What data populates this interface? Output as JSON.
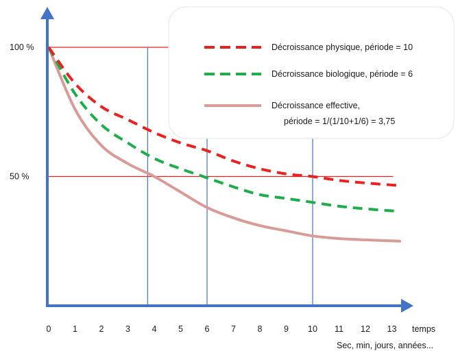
{
  "chart_data": {
    "type": "line",
    "title": "",
    "xlabel": "temps",
    "xlabel_units": "Sec, min, jours, années...",
    "ylabel": "",
    "x_ticks": [
      "0",
      "1",
      "2",
      "3",
      "4",
      "5",
      "6",
      "7",
      "8",
      "9",
      "10",
      "11",
      "12",
      "13"
    ],
    "y_ticks": [
      {
        "value": 100,
        "label": "100 %"
      },
      {
        "value": 50,
        "label": "50 %"
      }
    ],
    "xlim": [
      0,
      13.8
    ],
    "ylim": [
      0,
      110
    ],
    "x": [
      0,
      1,
      2,
      3,
      4,
      5,
      6,
      7,
      8,
      9,
      10,
      11,
      12,
      13.3
    ],
    "series": [
      {
        "name": "Décroissance physique, période = 10",
        "style": "dashed",
        "color": "#e8221f",
        "values": [
          100,
          86,
          77,
          72,
          67,
          63,
          60,
          56,
          53,
          51,
          50,
          48.5,
          47.5,
          46.5
        ]
      },
      {
        "name": "Décroissance biologique, période = 6",
        "style": "dashed",
        "color": "#1fac4b",
        "values": [
          100,
          82,
          70,
          63,
          57,
          53,
          49.5,
          46,
          43,
          41.5,
          40,
          38.5,
          37.5,
          36.5
        ]
      },
      {
        "name_line1": "Décroissance effective,",
        "name_line2": "période = 1/(1/10+1/6) = 3,75",
        "style": "solid",
        "color": "#d99b97",
        "values": [
          100,
          76,
          62,
          55,
          50,
          44,
          38,
          34,
          31,
          29,
          27,
          26,
          25.5,
          25
        ]
      }
    ],
    "reference_lines": {
      "horizontal": [
        100,
        50
      ],
      "vertical": [
        3.75,
        6,
        10
      ]
    },
    "legend_position": "top-right",
    "grid": false,
    "colors": {
      "axis": "#4472c4",
      "reference": "#e8221f",
      "vertical_reference": "#4472c4"
    }
  }
}
